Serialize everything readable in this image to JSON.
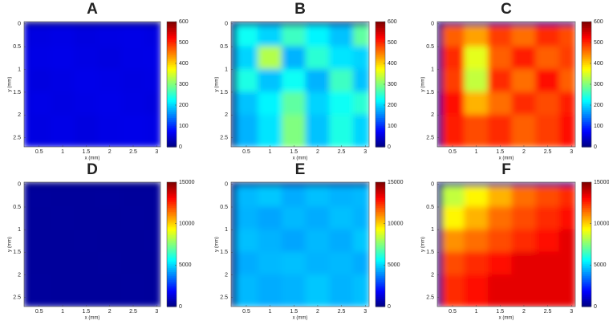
{
  "chart_data": [
    {
      "type": "heatmap",
      "title": "A",
      "xlabel": "x (mm)",
      "ylabel": "y (mm)",
      "x_edges": [
        0.18,
        0.3,
        0.75,
        1.25,
        1.75,
        2.25,
        2.75,
        3.08
      ],
      "y_edges": [
        -0.05,
        0.05,
        0.5,
        1,
        1.5,
        2,
        2.7
      ],
      "z": [
        [
          0,
          0,
          0,
          0,
          0,
          0,
          0
        ],
        [
          55,
          58,
          60,
          57,
          59,
          61,
          58
        ],
        [
          58,
          60,
          62,
          59,
          57,
          60,
          61
        ],
        [
          60,
          57,
          59,
          62,
          60,
          58,
          59
        ],
        [
          57,
          61,
          58,
          60,
          62,
          59,
          57
        ],
        [
          59,
          58,
          61,
          57,
          60,
          62,
          60
        ]
      ],
      "xlim": [
        0.18,
        3.08
      ],
      "ylim": [
        -0.05,
        2.7
      ],
      "xticks": [
        0.5,
        1,
        1.5,
        2,
        2.5,
        3
      ],
      "yticks": [
        0,
        0.5,
        1,
        1.5,
        2,
        2.5
      ],
      "clim": [
        0,
        600
      ],
      "cticks": [
        0,
        100,
        200,
        300,
        400,
        500,
        600
      ],
      "colormap": "jet"
    },
    {
      "type": "heatmap",
      "title": "B",
      "xlabel": "x (mm)",
      "ylabel": "y (mm)",
      "x_edges": [
        0.18,
        0.3,
        0.75,
        1.25,
        1.75,
        2.25,
        2.75,
        3.08
      ],
      "y_edges": [
        -0.05,
        0.05,
        0.5,
        1,
        1.5,
        2,
        2.7
      ],
      "z": [
        [
          0,
          0,
          0,
          0,
          0,
          0,
          0
        ],
        [
          0,
          230,
          200,
          260,
          220,
          190,
          280
        ],
        [
          0,
          200,
          330,
          180,
          250,
          210,
          200
        ],
        [
          0,
          240,
          190,
          230,
          180,
          260,
          190
        ],
        [
          0,
          190,
          220,
          280,
          200,
          230,
          250
        ],
        [
          0,
          180,
          210,
          300,
          190,
          240,
          200
        ]
      ],
      "xlim": [
        0.18,
        3.08
      ],
      "ylim": [
        -0.05,
        2.7
      ],
      "xticks": [
        0.5,
        1,
        1.5,
        2,
        2.5,
        3
      ],
      "yticks": [
        0,
        0.5,
        1,
        1.5,
        2,
        2.5
      ],
      "clim": [
        0,
        600
      ],
      "cticks": [
        0,
        100,
        200,
        300,
        400,
        500,
        600
      ],
      "colormap": "jet"
    },
    {
      "type": "heatmap",
      "title": "C",
      "xlabel": "x (mm)",
      "ylabel": "y (mm)",
      "x_edges": [
        0.18,
        0.3,
        0.75,
        1.25,
        1.75,
        2.25,
        2.75,
        3.08
      ],
      "y_edges": [
        -0.05,
        0.05,
        0.5,
        1,
        1.5,
        2,
        2.7
      ],
      "z": [
        [
          0,
          0,
          0,
          0,
          0,
          0,
          0
        ],
        [
          0,
          470,
          430,
          490,
          460,
          500,
          480
        ],
        [
          0,
          500,
          360,
          470,
          510,
          470,
          490
        ],
        [
          0,
          490,
          340,
          500,
          460,
          520,
          470
        ],
        [
          0,
          520,
          420,
          460,
          500,
          480,
          510
        ],
        [
          0,
          510,
          480,
          500,
          470,
          490,
          520
        ]
      ],
      "xlim": [
        0.18,
        3.08
      ],
      "ylim": [
        -0.05,
        2.7
      ],
      "xticks": [
        0.5,
        1,
        1.5,
        2,
        2.5,
        3
      ],
      "yticks": [
        0,
        0.5,
        1,
        1.5,
        2,
        2.5
      ],
      "clim": [
        0,
        600
      ],
      "cticks": [
        0,
        100,
        200,
        300,
        400,
        500,
        600
      ],
      "colormap": "jet"
    },
    {
      "type": "heatmap",
      "title": "D",
      "xlabel": "x (mm)",
      "ylabel": "y (mm)",
      "x_edges": [
        0.18,
        0.3,
        0.75,
        1.25,
        1.75,
        2.25,
        2.75,
        3.08
      ],
      "y_edges": [
        -0.05,
        0.05,
        0.5,
        1,
        1.5,
        2,
        2.7
      ],
      "z": [
        [
          0,
          0,
          0,
          0,
          0,
          0,
          0
        ],
        [
          400,
          420,
          410,
          400,
          430,
          410,
          400
        ],
        [
          410,
          400,
          420,
          410,
          400,
          420,
          410
        ],
        [
          400,
          410,
          400,
          420,
          410,
          400,
          420
        ],
        [
          420,
          400,
          410,
          400,
          420,
          410,
          400
        ],
        [
          410,
          420,
          400,
          410,
          400,
          420,
          410
        ]
      ],
      "xlim": [
        0.18,
        3.08
      ],
      "ylim": [
        -0.05,
        2.7
      ],
      "xticks": [
        0.5,
        1,
        1.5,
        2,
        2.5,
        3
      ],
      "yticks": [
        0,
        0.5,
        1,
        1.5,
        2,
        2.5
      ],
      "clim": [
        0,
        15000
      ],
      "cticks": [
        0,
        5000,
        10000,
        15000
      ],
      "colormap": "jet"
    },
    {
      "type": "heatmap",
      "title": "E",
      "xlabel": "x (mm)",
      "ylabel": "y (mm)",
      "x_edges": [
        0.18,
        0.3,
        0.75,
        1.25,
        1.75,
        2.25,
        2.75,
        3.08
      ],
      "y_edges": [
        -0.05,
        0.05,
        0.5,
        1,
        1.5,
        2,
        2.7
      ],
      "z": [
        [
          0,
          0,
          0,
          0,
          0,
          0,
          0
        ],
        [
          0,
          4600,
          4800,
          4400,
          4700,
          4500,
          4600
        ],
        [
          0,
          4500,
          4300,
          4600,
          4400,
          4700,
          4500
        ],
        [
          0,
          4700,
          4500,
          4300,
          4600,
          4400,
          4800
        ],
        [
          0,
          4400,
          4600,
          4700,
          4500,
          4600,
          4400
        ],
        [
          0,
          4600,
          4400,
          4500,
          4800,
          4500,
          4700
        ]
      ],
      "xlim": [
        0.18,
        3.08
      ],
      "ylim": [
        -0.05,
        2.7
      ],
      "xticks": [
        0.5,
        1,
        1.5,
        2,
        2.5,
        3
      ],
      "yticks": [
        0,
        0.5,
        1,
        1.5,
        2,
        2.5
      ],
      "clim": [
        0,
        15000
      ],
      "cticks": [
        0,
        5000,
        10000,
        15000
      ],
      "colormap": "jet"
    },
    {
      "type": "heatmap",
      "title": "F",
      "xlabel": "x (mm)",
      "ylabel": "y (mm)",
      "x_edges": [
        0.18,
        0.3,
        0.75,
        1.25,
        1.75,
        2.25,
        2.75,
        3.08
      ],
      "y_edges": [
        -0.05,
        0.05,
        0.5,
        1,
        1.5,
        2,
        2.7
      ],
      "z": [
        [
          0,
          0,
          0,
          0,
          0,
          0,
          0
        ],
        [
          0,
          8500,
          9500,
          10500,
          11500,
          12000,
          12500
        ],
        [
          0,
          9500,
          10500,
          11500,
          12000,
          12500,
          13000
        ],
        [
          0,
          11000,
          11500,
          12000,
          12500,
          13000,
          13500
        ],
        [
          0,
          12000,
          12500,
          13000,
          13500,
          13500,
          13500
        ],
        [
          0,
          12500,
          13000,
          13500,
          13500,
          13500,
          13500
        ]
      ],
      "xlim": [
        0.18,
        3.08
      ],
      "ylim": [
        -0.05,
        2.7
      ],
      "xticks": [
        0.5,
        1,
        1.5,
        2,
        2.5,
        3
      ],
      "yticks": [
        0,
        0.5,
        1,
        1.5,
        2,
        2.5
      ],
      "clim": [
        0,
        15000
      ],
      "cticks": [
        0,
        5000,
        10000,
        15000
      ],
      "colormap": "jet"
    }
  ]
}
